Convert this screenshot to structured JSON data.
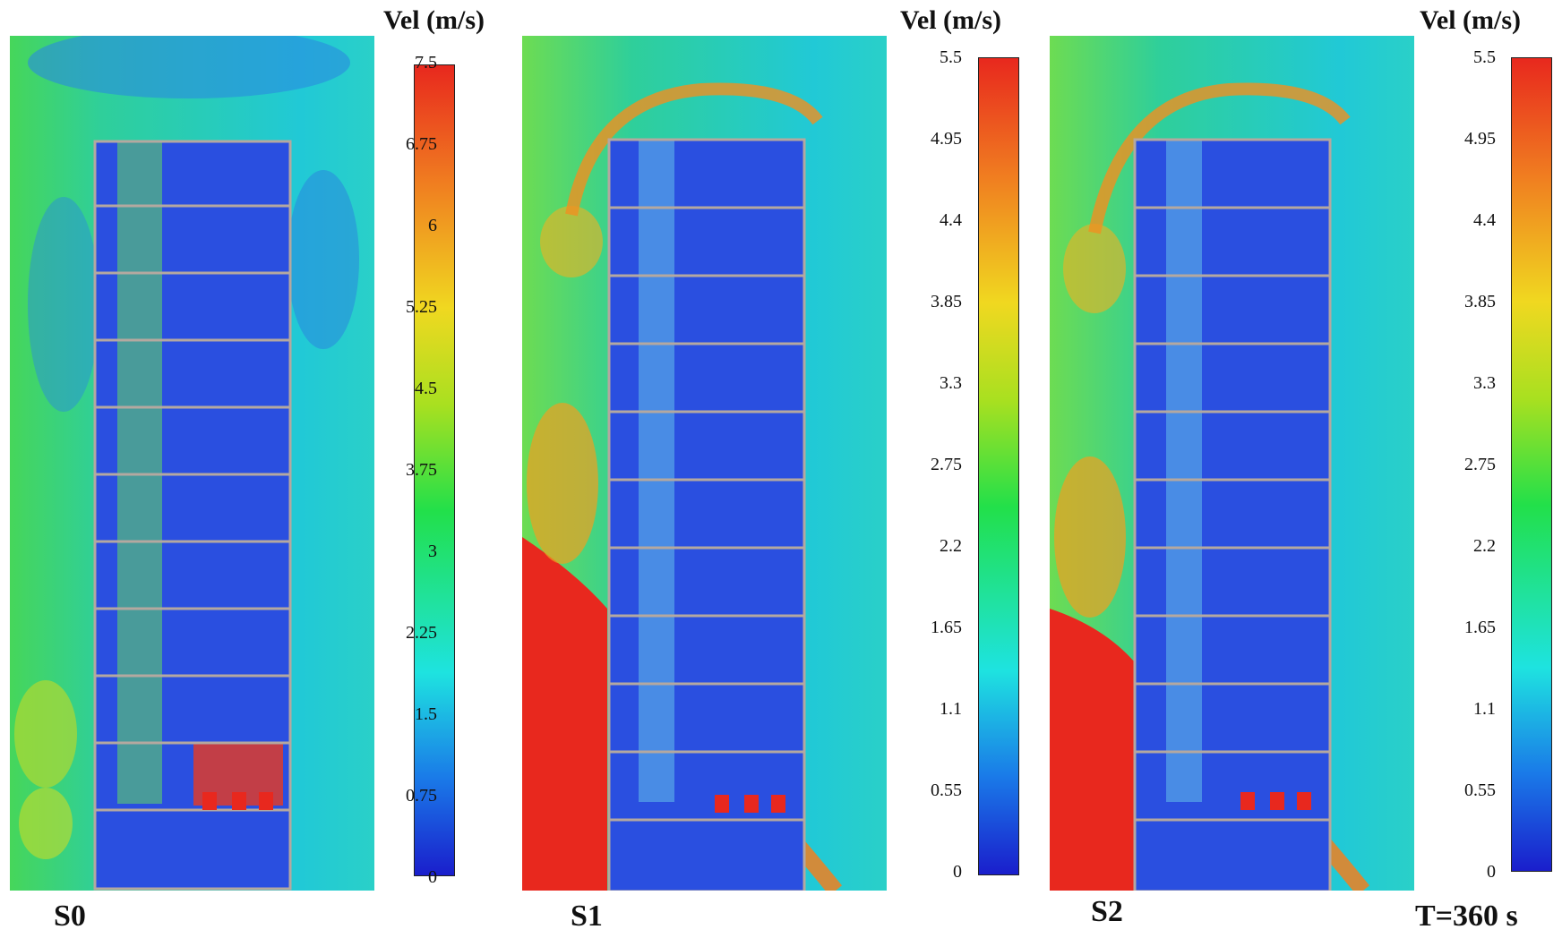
{
  "panels": [
    {
      "label": "S0",
      "colorbar": {
        "title": "Vel (m/s)",
        "ticks": [
          "7.5",
          "6.75",
          "6",
          "5.25",
          "4.5",
          "3.75",
          "3",
          "2.25",
          "1.5",
          "0.75",
          "0"
        ]
      }
    },
    {
      "label": "S1",
      "colorbar": {
        "title": "Vel (m/s)",
        "ticks": [
          "5.5",
          "4.95",
          "4.4",
          "3.85",
          "3.3",
          "2.75",
          "2.2",
          "1.65",
          "1.1",
          "0.55",
          "0"
        ]
      }
    },
    {
      "label": "S2",
      "colorbar": {
        "title": "Vel (m/s)",
        "ticks": [
          "5.5",
          "4.95",
          "4.4",
          "3.85",
          "3.3",
          "2.75",
          "2.2",
          "1.65",
          "1.1",
          "0.55",
          "0"
        ]
      }
    }
  ],
  "time_label": "T=360 s",
  "colors": {
    "high": "#e8281e",
    "mid_high": "#f7a800",
    "mid": "#e5ec1a",
    "mid_low": "#22e04a",
    "low_mid": "#1ee3e0",
    "low": "#1646e8",
    "min": "#1a22c8",
    "wall": "#9a8c86",
    "stairs": "#c8b08a",
    "door": "#c040d0"
  }
}
